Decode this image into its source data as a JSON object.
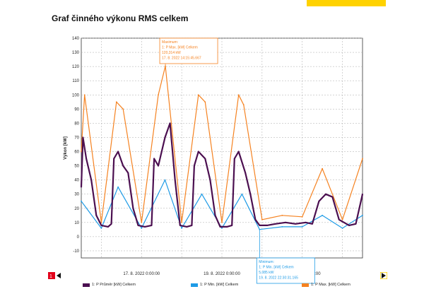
{
  "page": {
    "title": "Graf činného výkonu RMS celkem",
    "accent_color": "#FFD200",
    "nav_left_icon": "page-prev-icon",
    "nav_right_icon": "page-next-icon"
  },
  "chart_data": {
    "type": "line",
    "title": "",
    "ylabel": "Výkon [kW]",
    "xlabel": "",
    "ylim": [
      -15,
      140
    ],
    "y_ticks": [
      -10,
      0,
      10,
      20,
      30,
      40,
      50,
      60,
      70,
      80,
      90,
      100,
      110,
      120,
      130,
      140
    ],
    "x_range": [
      "15. 8. 2022 12:00:00",
      "22. 8. 2022 12:00:00"
    ],
    "x_tick_labels": [
      "17. 8. 2022 0:00:00",
      "19. 8. 2022 0:00:00",
      "21. 8. 2022 0:00:00"
    ],
    "grid": true,
    "legend_position": "bottom",
    "series": [
      {
        "name": "1: P Průměr [kW] Celkem",
        "color": "#4B0F50",
        "x": [
          "15.8. 12:00",
          "15.8. 13:00",
          "15.8. 15:00",
          "15.8. 18:00",
          "15.8. 21:00",
          "16.8. 0:00",
          "16.8. 4:00",
          "16.8. 6:00",
          "16.8. 7:30",
          "16.8. 10:00",
          "16.8. 13:00",
          "16.8. 16:00",
          "16.8. 19:00",
          "16.8. 22:00",
          "17.8. 2:00",
          "17.8. 6:00",
          "17.8. 7:30",
          "17.8. 10:00",
          "17.8. 14:00",
          "17.8. 17:00",
          "17.8. 20:00",
          "17.8. 23:00",
          "18.8. 3:00",
          "18.8. 6:00",
          "18.8. 7:30",
          "18.8. 10:00",
          "18.8. 14:00",
          "18.8. 17:00",
          "18.8. 20:00",
          "18.8. 23:00",
          "19.8. 3:00",
          "19.8. 6:00",
          "19.8. 7:30",
          "19.8. 10:00",
          "19.8. 14:00",
          "19.8. 17:00",
          "19.8. 20:00",
          "19.8. 22:30",
          "20.8. 3:00",
          "20.8. 8:00",
          "20.8. 14:00",
          "20.8. 20:00",
          "21.8. 2:00",
          "21.8. 6:00",
          "21.8. 10:00",
          "21.8. 14:00",
          "21.8. 18:00",
          "21.8. 22:00",
          "22.8. 4:00",
          "22.8. 8:00",
          "22.8. 12:00"
        ],
        "values": [
          35,
          70,
          55,
          40,
          15,
          8,
          7,
          9,
          55,
          60,
          50,
          45,
          20,
          8,
          7,
          8,
          55,
          50,
          70,
          80,
          40,
          8,
          7,
          8,
          50,
          60,
          55,
          40,
          15,
          7,
          7,
          8,
          55,
          60,
          45,
          30,
          12,
          8,
          8,
          9,
          10,
          9,
          10,
          9,
          25,
          30,
          28,
          12,
          8,
          9,
          30
        ]
      },
      {
        "name": "1: P Min. [kW] Celkem",
        "color": "#1E9BE6",
        "x": [
          "15.8. 12:00",
          "16.8. 0:00",
          "16.8. 10:00",
          "17.8. 0:00",
          "17.8. 14:00",
          "18.8. 0:00",
          "18.8. 12:00",
          "19.8. 0:00",
          "19.8. 12:00",
          "19.8. 22:30",
          "20.8. 12:00",
          "21.8. 0:00",
          "21.8. 12:00",
          "22.8. 0:00",
          "22.8. 12:00"
        ],
        "values": [
          25,
          6,
          35,
          6,
          40,
          6,
          30,
          6,
          30,
          5.085,
          7,
          7,
          15,
          6,
          15
        ]
      },
      {
        "name": "1: P Max. [kW] Celkem",
        "color": "#F58220",
        "x": [
          "15.8. 12:00",
          "15.8. 14:00",
          "16.8. 0:00",
          "16.8. 9:00",
          "16.8. 13:00",
          "17.8. 0:00",
          "17.8. 10:00",
          "17.8. 14:15",
          "18.8. 0:00",
          "18.8. 10:00",
          "18.8. 14:00",
          "19.8. 0:00",
          "19.8. 10:00",
          "19.8. 13:00",
          "20.8. 0:00",
          "20.8. 12:00",
          "21.8. 0:00",
          "21.8. 12:00",
          "22.8. 0:00",
          "22.8. 12:00"
        ],
        "values": [
          60,
          100,
          10,
          95,
          90,
          10,
          100,
          120.314,
          10,
          100,
          95,
          10,
          100,
          93,
          12,
          15,
          14,
          48,
          12,
          55
        ]
      }
    ],
    "annotations": [
      {
        "label": "Maximum",
        "text": [
          "Maximum:",
          "1: P Max. [kW] Celkem",
          "120,314 kW",
          "17. 8. 2022 14:15:45.667"
        ],
        "series": "1: P Max. [kW] Celkem",
        "x": "17.8. 14:15",
        "y": 120.314,
        "color": "#F58220"
      },
      {
        "label": "Minimum",
        "text": [
          "Minimum:",
          "1: P Min. [kW] Celkem",
          "5,085 kW",
          "19. 8. 2022 22:30:31.165"
        ],
        "series": "1: P Min. [kW] Celkem",
        "x": "19.8. 22:30",
        "y": 5.085,
        "color": "#1E9BE6"
      }
    ]
  }
}
